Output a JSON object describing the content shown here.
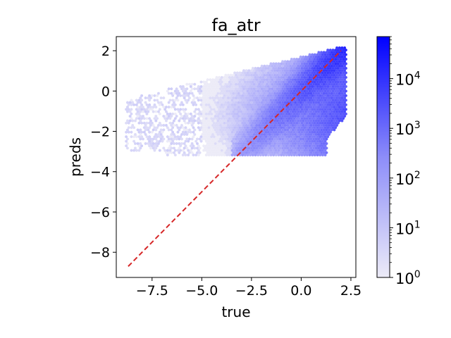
{
  "chart_data": {
    "type": "hexbin",
    "title": "fa_atr",
    "xlabel": "true",
    "ylabel": "preds",
    "xlim": [
      -9.3,
      2.75
    ],
    "ylim": [
      -9.25,
      2.7
    ],
    "x_ticks": [
      -7.5,
      -5.0,
      -2.5,
      0.0,
      2.5
    ],
    "x_tick_labels": [
      "−7.5",
      "−5.0",
      "−2.5",
      "0.0",
      "2.5"
    ],
    "y_ticks": [
      -8,
      -6,
      -4,
      -2,
      0,
      2
    ],
    "y_tick_labels": [
      "−8",
      "−6",
      "−4",
      "−2",
      "0",
      "2"
    ],
    "reference_line": {
      "style": "dashed",
      "color": "#d62728",
      "points": [
        [
          -8.7,
          -8.7
        ],
        [
          2.0,
          2.0
        ]
      ]
    },
    "colorbar": {
      "scale": "log",
      "vmin": 1,
      "vmax": 70000,
      "ticks": [
        1,
        10,
        100,
        1000,
        10000
      ],
      "tick_bases": [
        "10",
        "10",
        "10",
        "10",
        "10"
      ],
      "tick_exponents": [
        "0",
        "1",
        "2",
        "3",
        "4"
      ],
      "color_low": "#ecebf7",
      "color_high": "#0000ff"
    },
    "density_model": {
      "description": "counts per hex bin, approximated from the rendered density",
      "hex_size_x": 0.13,
      "x_range": [
        -8.8,
        2.3
      ],
      "diag_center_band": 0.4,
      "upper_edge_offset": 1.9,
      "lower_floor": -3.3
    },
    "grid": false,
    "legend": "none"
  }
}
